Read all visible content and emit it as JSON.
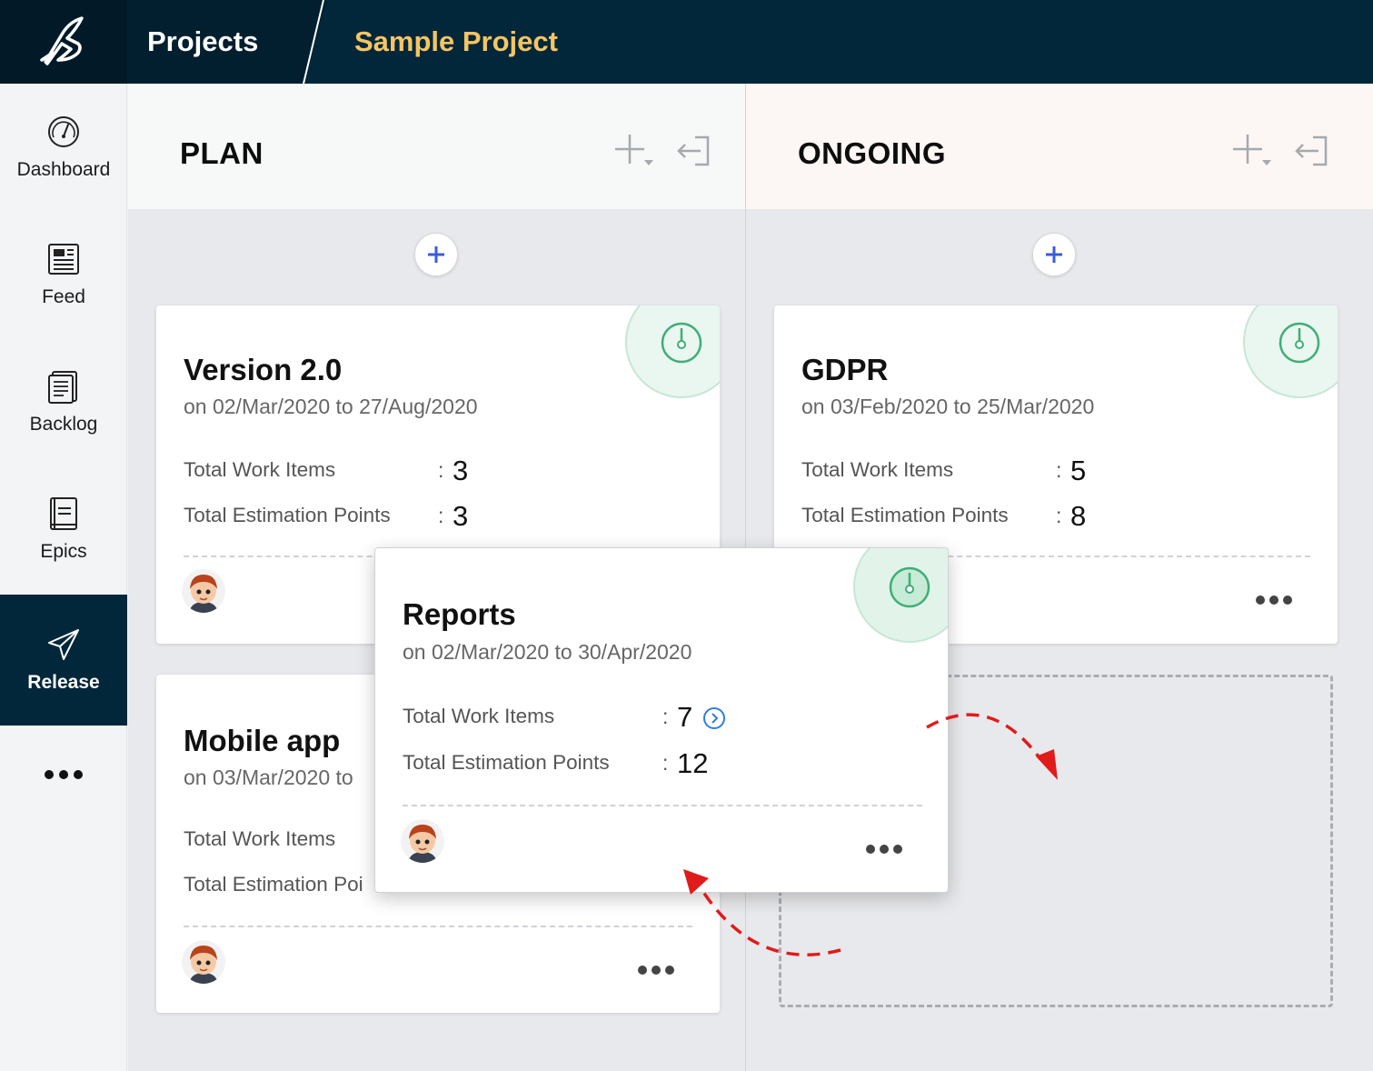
{
  "header": {
    "breadcrumb_root": "Projects",
    "breadcrumb_current": "Sample Project",
    "accent_color": "#f5c563",
    "bg_color": "#03273a"
  },
  "sidebar": {
    "items": [
      {
        "label": "Dashboard",
        "icon": "gauge-icon"
      },
      {
        "label": "Feed",
        "icon": "newspaper-icon"
      },
      {
        "label": "Backlog",
        "icon": "clipboard-list-icon"
      },
      {
        "label": "Epics",
        "icon": "book-icon"
      },
      {
        "label": "Release",
        "icon": "paper-plane-icon",
        "active": true
      }
    ],
    "more_icon": "more-dots-icon"
  },
  "columns": {
    "plan": {
      "title": "PLAN",
      "cards": [
        {
          "title": "Version 2.0",
          "dates": "on 02/Mar/2020 to 27/Aug/2020",
          "work_items_label": "Total Work Items",
          "work_items": "3",
          "points_label": "Total Estimation Points",
          "points": "3"
        },
        {
          "title": "Mobile app",
          "dates": "on 03/Mar/2020 to",
          "work_items_label": "Total Work Items",
          "points_label": "Total Estimation Poi"
        }
      ]
    },
    "ongoing": {
      "title": "ONGOING",
      "cards": [
        {
          "title": "GDPR",
          "dates": "on 03/Feb/2020 to 25/Mar/2020",
          "work_items_label": "Total Work Items",
          "work_items": "5",
          "points_label": "Total Estimation Points",
          "points": "8"
        }
      ]
    }
  },
  "drag_card": {
    "title": "Reports",
    "dates": "on 02/Mar/2020 to 30/Apr/2020",
    "work_items_label": "Total Work Items",
    "work_items": "7",
    "points_label": "Total Estimation Points",
    "points": "12"
  },
  "colon": ":",
  "colors": {
    "status_green": "#3fae77",
    "add_blue": "#3b5bdb",
    "arrow_red": "#e01b1b"
  }
}
